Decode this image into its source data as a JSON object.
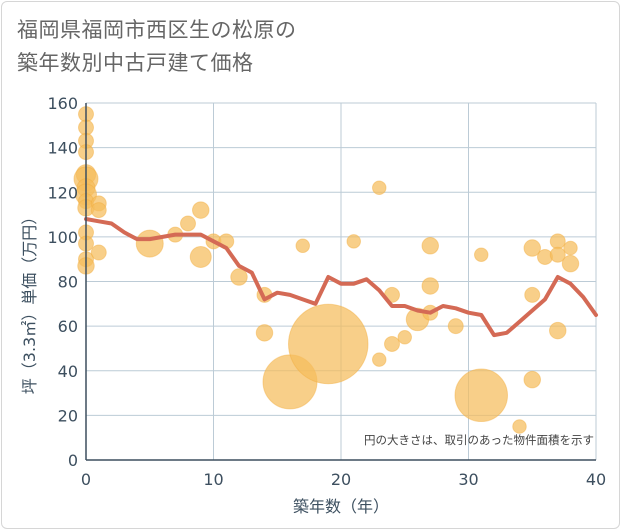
{
  "chart_data": {
    "type": "scatter",
    "title_lines": [
      "福岡県福岡市西区生の松原の",
      "築年数別中古戸建て価格"
    ],
    "xlabel": "築年数（年）",
    "ylabel": "坪（3.3㎡）単価（万円）",
    "xlim": [
      0,
      40
    ],
    "ylim": [
      0,
      160
    ],
    "xticks": [
      0,
      10,
      20,
      30,
      40
    ],
    "yticks": [
      0,
      20,
      40,
      60,
      80,
      100,
      120,
      140,
      160
    ],
    "grid": true,
    "note": "円の大きさは、取引のあった物件面積を示す",
    "colors": {
      "bubble": "#f5bc5b",
      "line": "#d46a55",
      "grid": "#bccbd6",
      "axis": "#3d4f5f"
    },
    "bubbles": [
      {
        "x": 0,
        "y": 155,
        "s": 1
      },
      {
        "x": 0,
        "y": 149,
        "s": 1
      },
      {
        "x": 0,
        "y": 143,
        "s": 1
      },
      {
        "x": 0,
        "y": 138,
        "s": 1
      },
      {
        "x": 0,
        "y": 128,
        "s": 1.3
      },
      {
        "x": 0,
        "y": 126,
        "s": 1.6
      },
      {
        "x": 0,
        "y": 122,
        "s": 1.2
      },
      {
        "x": 0,
        "y": 119,
        "s": 1.4
      },
      {
        "x": 0,
        "y": 116,
        "s": 1
      },
      {
        "x": 0,
        "y": 113,
        "s": 1.1
      },
      {
        "x": 0,
        "y": 102,
        "s": 1
      },
      {
        "x": 0,
        "y": 97,
        "s": 1
      },
      {
        "x": 0,
        "y": 90,
        "s": 1
      },
      {
        "x": 0,
        "y": 87,
        "s": 1.1
      },
      {
        "x": 1,
        "y": 115,
        "s": 1
      },
      {
        "x": 1,
        "y": 112,
        "s": 1
      },
      {
        "x": 1,
        "y": 93,
        "s": 1
      },
      {
        "x": 5,
        "y": 97,
        "s": 1.8
      },
      {
        "x": 7,
        "y": 101,
        "s": 1
      },
      {
        "x": 8,
        "y": 106,
        "s": 1
      },
      {
        "x": 9,
        "y": 112,
        "s": 1.1
      },
      {
        "x": 9,
        "y": 91,
        "s": 1.4
      },
      {
        "x": 10,
        "y": 98,
        "s": 1
      },
      {
        "x": 11,
        "y": 98,
        "s": 1
      },
      {
        "x": 12,
        "y": 82,
        "s": 1.1
      },
      {
        "x": 14,
        "y": 74,
        "s": 1
      },
      {
        "x": 14,
        "y": 57,
        "s": 1.1
      },
      {
        "x": 16,
        "y": 35,
        "s": 3.6
      },
      {
        "x": 17,
        "y": 96,
        "s": 0.9
      },
      {
        "x": 19,
        "y": 52,
        "s": 5.3
      },
      {
        "x": 21,
        "y": 98,
        "s": 0.9
      },
      {
        "x": 23,
        "y": 122,
        "s": 0.9
      },
      {
        "x": 23,
        "y": 45,
        "s": 0.9
      },
      {
        "x": 24,
        "y": 74,
        "s": 1
      },
      {
        "x": 24,
        "y": 52,
        "s": 1
      },
      {
        "x": 25,
        "y": 55,
        "s": 0.9
      },
      {
        "x": 26,
        "y": 63,
        "s": 1.5
      },
      {
        "x": 27,
        "y": 96,
        "s": 1.1
      },
      {
        "x": 27,
        "y": 78,
        "s": 1.1
      },
      {
        "x": 27,
        "y": 66,
        "s": 1
      },
      {
        "x": 29,
        "y": 60,
        "s": 1
      },
      {
        "x": 31,
        "y": 92,
        "s": 0.9
      },
      {
        "x": 31,
        "y": 29,
        "s": 3.5
      },
      {
        "x": 34,
        "y": 15,
        "s": 0.9
      },
      {
        "x": 35,
        "y": 95,
        "s": 1.1
      },
      {
        "x": 35,
        "y": 74,
        "s": 1
      },
      {
        "x": 35,
        "y": 36,
        "s": 1.1
      },
      {
        "x": 36,
        "y": 91,
        "s": 1
      },
      {
        "x": 37,
        "y": 98,
        "s": 1
      },
      {
        "x": 37,
        "y": 92,
        "s": 1
      },
      {
        "x": 37,
        "y": 58,
        "s": 1.1
      },
      {
        "x": 38,
        "y": 95,
        "s": 0.9
      },
      {
        "x": 38,
        "y": 88,
        "s": 1.1
      }
    ],
    "line": {
      "x": [
        0,
        1,
        2,
        3,
        4,
        5,
        6,
        7,
        8,
        9,
        10,
        11,
        12,
        13,
        14,
        15,
        16,
        17,
        18,
        19,
        20,
        21,
        22,
        23,
        24,
        25,
        26,
        27,
        28,
        29,
        30,
        31,
        32,
        33,
        34,
        35,
        36,
        37,
        38,
        39,
        40
      ],
      "y": [
        108,
        107,
        106,
        102,
        99,
        99,
        100,
        101,
        101,
        101,
        98,
        95,
        87,
        84,
        72,
        75,
        74,
        72,
        70,
        82,
        79,
        79,
        81,
        76,
        69,
        69,
        67,
        66,
        69,
        68,
        66,
        65,
        56,
        57,
        62,
        67,
        72,
        82,
        79,
        73,
        65
      ]
    }
  }
}
